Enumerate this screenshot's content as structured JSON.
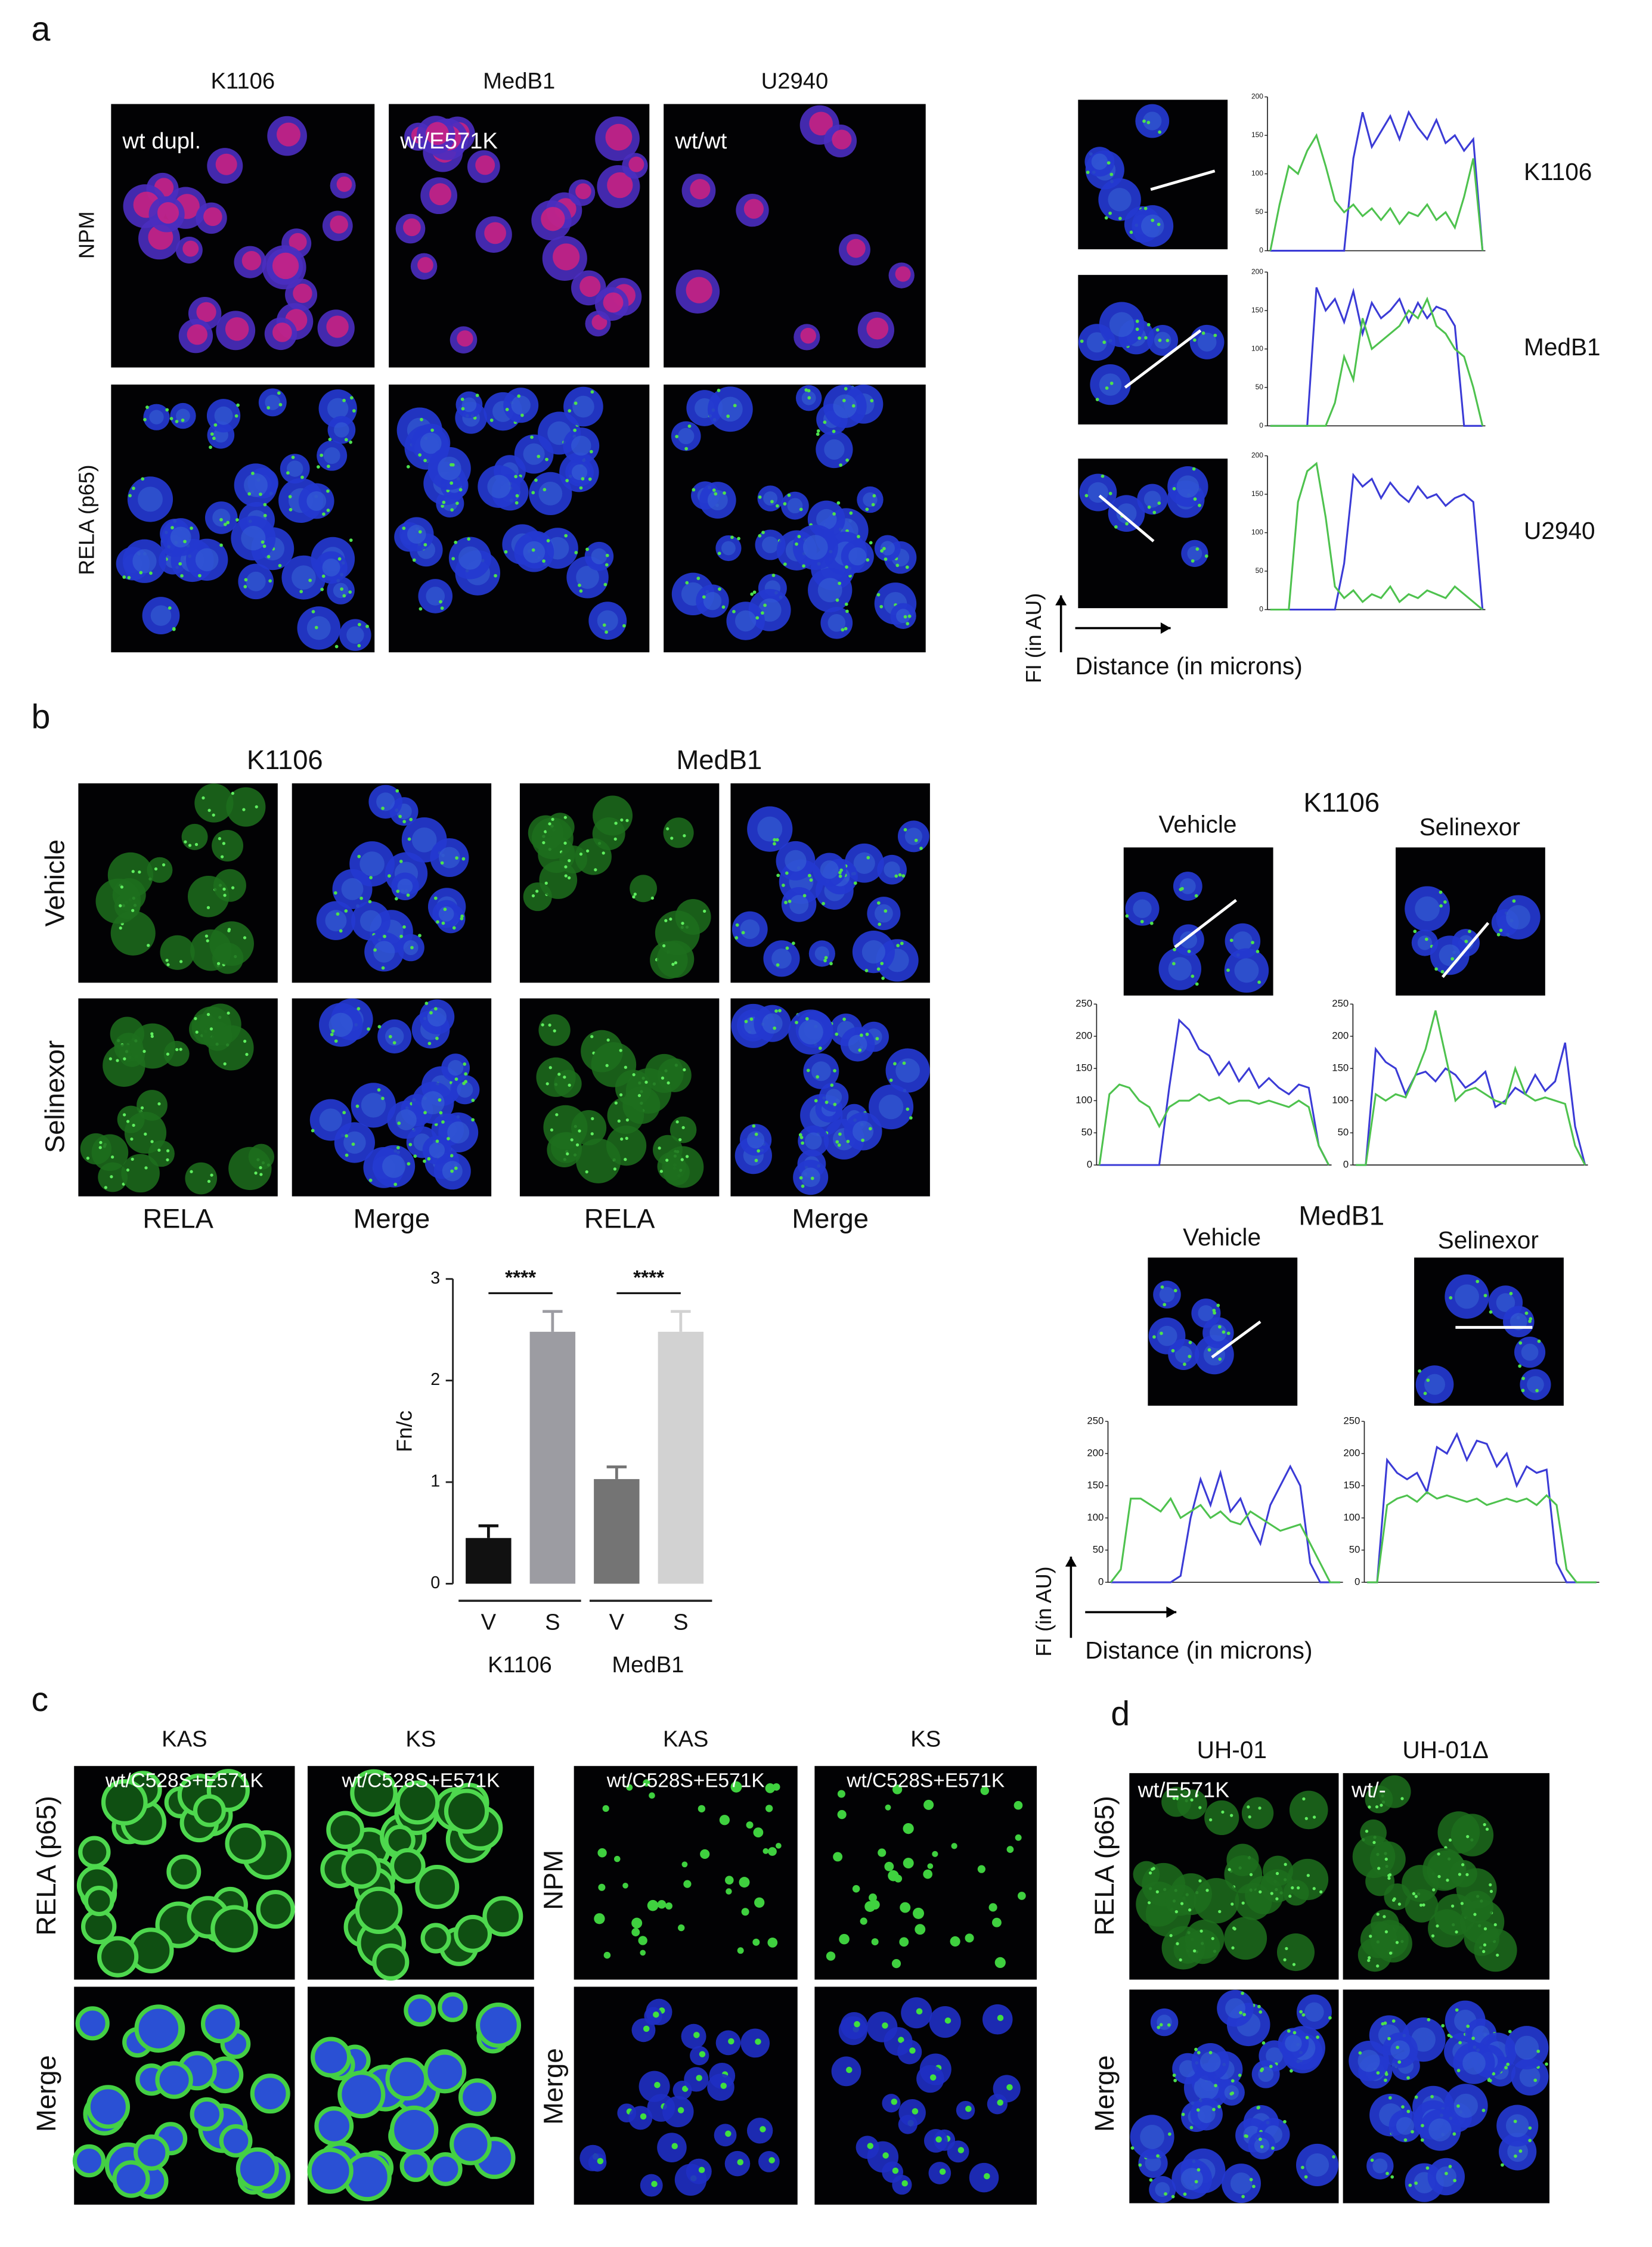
{
  "panel_a": {
    "label": "a",
    "columns": [
      "K1106",
      "MedB1",
      "U2940"
    ],
    "genotypes": [
      "wt  dupl.",
      "wt/E571K",
      "wt/wt"
    ],
    "rows": [
      "NPM",
      "RELA (p65)"
    ],
    "profiles": [
      {
        "cell": "K1106",
        "ylim": [
          0,
          200
        ],
        "yticks": [
          0,
          50,
          100,
          150,
          200
        ],
        "series": [
          {
            "color": "#3b3bd6",
            "values": [
              0,
              0,
              0,
              0,
              0,
              0,
              0,
              0,
              0,
              120,
              180,
              135,
              155,
              175,
              145,
              180,
              160,
              145,
              170,
              140,
              150,
              130,
              145,
              0
            ]
          },
          {
            "color": "#4ec24e",
            "values": [
              0,
              60,
              110,
              100,
              130,
              150,
              110,
              65,
              50,
              60,
              45,
              55,
              40,
              55,
              35,
              50,
              45,
              60,
              40,
              50,
              30,
              70,
              120,
              0
            ]
          }
        ]
      },
      {
        "cell": "MedB1",
        "ylim": [
          0,
          200
        ],
        "yticks": [
          0,
          50,
          100,
          150,
          200
        ],
        "series": [
          {
            "color": "#3b3bd6",
            "values": [
              0,
              0,
              0,
              0,
              0,
              180,
              150,
              165,
              135,
              175,
              120,
              160,
              140,
              150,
              165,
              135,
              160,
              140,
              155,
              150,
              130,
              0,
              0,
              0
            ]
          },
          {
            "color": "#4ec24e",
            "values": [
              0,
              0,
              0,
              0,
              0,
              0,
              0,
              30,
              90,
              60,
              140,
              100,
              110,
              120,
              130,
              150,
              140,
              165,
              130,
              120,
              100,
              90,
              50,
              0
            ]
          }
        ]
      },
      {
        "cell": "U2940",
        "ylim": [
          0,
          200
        ],
        "yticks": [
          0,
          50,
          100,
          150,
          200
        ],
        "series": [
          {
            "color": "#3b3bd6",
            "values": [
              0,
              0,
              0,
              0,
              0,
              0,
              0,
              0,
              60,
              175,
              160,
              170,
              145,
              165,
              150,
              140,
              160,
              145,
              150,
              135,
              145,
              150,
              140,
              0
            ]
          },
          {
            "color": "#4ec24e",
            "values": [
              0,
              0,
              0,
              140,
              180,
              190,
              120,
              30,
              15,
              25,
              10,
              20,
              15,
              30,
              10,
              20,
              15,
              25,
              20,
              15,
              30,
              20,
              10,
              0
            ]
          }
        ]
      }
    ],
    "y_axis_label": "FI (in AU)",
    "x_axis_label": "Distance (in microns)"
  },
  "panel_b": {
    "label": "b",
    "lines": [
      "K1106",
      "MedB1"
    ],
    "treatments": [
      "Vehicle",
      "Selinexor"
    ],
    "channels": [
      "RELA",
      "Merge",
      "RELA",
      "Merge"
    ],
    "chart": {
      "type": "bar",
      "ylabel": "Fn/c",
      "categories": [
        "V",
        "S",
        "V",
        "S"
      ],
      "groups": [
        "K1106",
        "MedB1"
      ],
      "values": [
        0.45,
        2.48,
        1.03,
        2.48
      ],
      "errors": [
        0.12,
        0.2,
        0.12,
        0.2
      ],
      "colors": [
        "#111111",
        "#9c9ca2",
        "#747474",
        "#d2d2d2"
      ],
      "ylim": [
        0,
        3
      ],
      "yticks": [
        0,
        1,
        2,
        3
      ],
      "annotations": [
        "****",
        "****"
      ]
    },
    "profiles": [
      {
        "line": "K1106",
        "conditions": [
          {
            "name": "Vehicle",
            "ylim": [
              0,
              250
            ],
            "yticks": [
              0,
              50,
              100,
              150,
              200,
              250
            ],
            "series": [
              {
                "color": "#3b3bd6",
                "values": [
                  0,
                  0,
                  0,
                  0,
                  0,
                  0,
                  0,
                  120,
                  225,
                  210,
                  180,
                  170,
                  140,
                  160,
                  130,
                  150,
                  120,
                  135,
                  120,
                  110,
                  125,
                  120,
                  30,
                  0
                ]
              },
              {
                "color": "#4ec24e",
                "values": [
                  0,
                  110,
                  125,
                  120,
                  100,
                  90,
                  60,
                  90,
                  100,
                  100,
                  110,
                  100,
                  105,
                  95,
                  100,
                  100,
                  95,
                  100,
                  95,
                  90,
                  100,
                  90,
                  30,
                  0
                ]
              }
            ]
          },
          {
            "name": "Selinexor",
            "ylim": [
              0,
              250
            ],
            "yticks": [
              0,
              50,
              100,
              150,
              200,
              250
            ],
            "series": [
              {
                "color": "#3b3bd6",
                "values": [
                  0,
                  0,
                  180,
                  160,
                  150,
                  110,
                  140,
                  145,
                  130,
                  150,
                  140,
                  120,
                  130,
                  145,
                  90,
                  100,
                  120,
                  110,
                  140,
                  115,
                  130,
                  190,
                  60,
                  0
                ]
              },
              {
                "color": "#4ec24e",
                "values": [
                  0,
                  0,
                  110,
                  100,
                  110,
                  105,
                  140,
                  180,
                  240,
                  170,
                  100,
                  115,
                  120,
                  110,
                  100,
                  95,
                  150,
                  110,
                  100,
                  105,
                  100,
                  95,
                  30,
                  0
                ]
              }
            ]
          }
        ]
      },
      {
        "line": "MedB1",
        "conditions": [
          {
            "name": "Vehicle",
            "ylim": [
              0,
              250
            ],
            "yticks": [
              0,
              50,
              100,
              150,
              200,
              250
            ],
            "series": [
              {
                "color": "#3b3bd6",
                "values": [
                  0,
                  0,
                  0,
                  0,
                  0,
                  0,
                  0,
                  10,
                  100,
                  160,
                  120,
                  170,
                  110,
                  130,
                  90,
                  60,
                  120,
                  150,
                  180,
                  150,
                  30,
                  0,
                  0,
                  0
                ]
              },
              {
                "color": "#4ec24e",
                "values": [
                  0,
                  20,
                  130,
                  130,
                  120,
                  110,
                  130,
                  100,
                  110,
                  120,
                  100,
                  110,
                  95,
                  90,
                  110,
                  100,
                  90,
                  80,
                  85,
                  90,
                  60,
                  30,
                  0,
                  0
                ]
              }
            ]
          },
          {
            "name": "Selinexor",
            "ylim": [
              0,
              250
            ],
            "yticks": [
              0,
              50,
              100,
              150,
              200,
              250
            ],
            "series": [
              {
                "color": "#3b3bd6",
                "values": [
                  0,
                  0,
                  190,
                  170,
                  160,
                  170,
                  140,
                  210,
                  200,
                  230,
                  190,
                  220,
                  215,
                  180,
                  200,
                  150,
                  180,
                  170,
                  175,
                  30,
                  0,
                  0,
                  0,
                  0
                ]
              },
              {
                "color": "#4ec24e",
                "values": [
                  0,
                  0,
                  120,
                  130,
                  135,
                  125,
                  140,
                  130,
                  135,
                  130,
                  125,
                  130,
                  120,
                  125,
                  130,
                  125,
                  130,
                  120,
                  135,
                  120,
                  20,
                  0,
                  0,
                  0
                ]
              }
            ]
          }
        ]
      }
    ],
    "y_axis_label": "FI (in AU)",
    "x_axis_label": "Distance (in microns)"
  },
  "panel_c": {
    "label": "c",
    "columns": [
      "KAS",
      "KS",
      "KAS",
      "KS"
    ],
    "genotypes": [
      "wt/C528S+E571K",
      "wt/C528S+E571K",
      "wt/C528S+E571K",
      "wt/C528S+E571K"
    ],
    "rows_left": [
      "RELA (p65)",
      "Merge"
    ],
    "rows_right": [
      "NPM",
      "Merge"
    ]
  },
  "panel_d": {
    "label": "d",
    "columns": [
      "UH-01",
      "UH-01Δ"
    ],
    "genotypes": [
      "wt/E571K",
      "wt/-"
    ],
    "rows": [
      "RELA (p65)",
      "Merge"
    ]
  }
}
